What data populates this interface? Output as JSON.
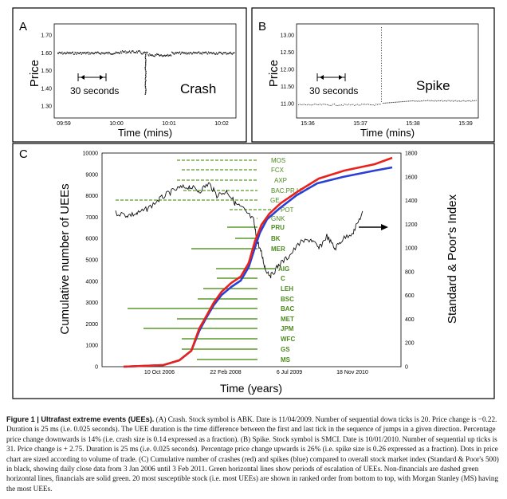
{
  "figure": {
    "panel_a": {
      "letter": "A",
      "ylabel": "Price",
      "xlabel": "Time (mins)",
      "annotation": "Crash",
      "scale_label": "30 seconds",
      "y_ticks": [
        "1.70",
        "1.60",
        "1.50",
        "1.40",
        "1.30"
      ],
      "x_ticks": [
        "09:59",
        "10:00",
        "10:01",
        "10:02"
      ]
    },
    "panel_b": {
      "letter": "B",
      "ylabel": "Price",
      "xlabel": "Time (mins)",
      "annotation": "Spike",
      "scale_label": "30 seconds",
      "y_ticks": [
        "13.00",
        "12.50",
        "12.00",
        "11.50",
        "11.00"
      ],
      "x_ticks": [
        "15:36",
        "15:37",
        "15:38",
        "15:39"
      ]
    },
    "panel_c": {
      "letter": "C",
      "ylabel_left": "Cumulative number of UEEs",
      "ylabel_right": "Standard & Poor's Index",
      "xlabel": "Time (years)",
      "y_left_ticks": [
        "10000",
        "9000",
        "8000",
        "7000",
        "6000",
        "5000",
        "4000",
        "3000",
        "2000",
        "1000",
        "0"
      ],
      "y_right_ticks": [
        "1800",
        "1600",
        "1400",
        "1200",
        "1000",
        "800",
        "600",
        "400",
        "200",
        "0"
      ],
      "x_ticks": [
        "10 Oct 2006",
        "22 Feb 2008",
        "6 Jul 2009",
        "18 Nov 2010"
      ],
      "nonfinancial_stocks": [
        "MOS",
        "FCX",
        "AXP",
        "BAC.PR.H",
        "GE",
        "POT",
        "GNK"
      ],
      "financial_stocks": [
        "PRU",
        "BK",
        "MER",
        "AIG",
        "C",
        "LEH",
        "BSC",
        "BAC",
        "MET",
        "JPM",
        "WFC",
        "GS",
        "MS"
      ],
      "colors": {
        "crash": "#e8221b",
        "spike": "#2a3fd6",
        "stock_line": "#5a9a2a",
        "stock_label": "#4d8a1f"
      }
    }
  },
  "caption": {
    "title": "Figure 1 | Ultrafast extreme events (UEEs).",
    "body": "(A) Crash. Stock symbol is ABK. Date is 11/04/2009. Number of sequential down ticks is 20. Price change is −0.22. Duration is 25 ms (i.e. 0.025 seconds). The UEE duration is the time difference between the first and last tick in the sequence of jumps in a given direction. Percentage price change downwards is 14% (i.e. crash size is 0.14 expressed as a fraction). (B) Spike. Stock symbol is SMCI. Date is 10/01/2010. Number of sequential up ticks is 31. Price change is + 2.75. Duration is 25 ms (i.e. 0.025 seconds). Percentage price change upwards is 26% (i.e. spike size is 0.26 expressed as a fraction). Dots in price chart are sized according to volume of trade. (C) Cumulative number of crashes (red) and spikes (blue) compared to overall stock market index (Standard & Poor's 500) in black, showing daily close data from 3 Jan 2006 until 3 Feb 2011. Green horizontal lines show periods of escalation of UEEs. Non-financials are dashed green horizontal lines, financials are solid green. 20 most susceptible stock (i.e. most UEEs) are shown in ranked order from bottom to top, with Morgan Stanley (MS) having the most UEEs."
  }
}
